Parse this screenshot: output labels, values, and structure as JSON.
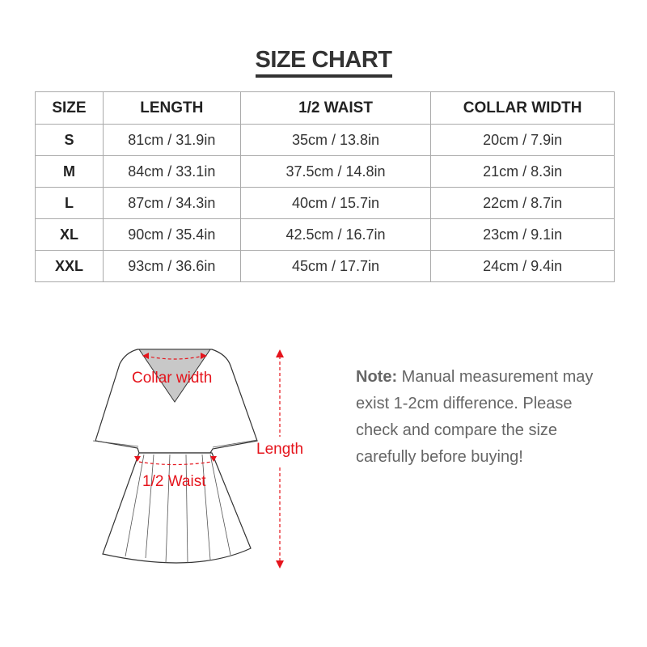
{
  "title": "SIZE CHART",
  "table": {
    "headers": [
      "SIZE",
      "LENGTH",
      "1/2 WAIST",
      "COLLAR WIDTH"
    ],
    "rows": [
      [
        "S",
        "81cm / 31.9in",
        "35cm / 13.8in",
        "20cm / 7.9in"
      ],
      [
        "M",
        "84cm / 33.1in",
        "37.5cm / 14.8in",
        "21cm / 8.3in"
      ],
      [
        "L",
        "87cm / 34.3in",
        "40cm / 15.7in",
        "22cm / 8.7in"
      ],
      [
        "XL",
        "90cm / 35.4in",
        "42.5cm / 16.7in",
        "23cm / 9.1in"
      ],
      [
        "XXL",
        "93cm / 36.6in",
        "45cm / 17.7in",
        "24cm / 9.4in"
      ]
    ]
  },
  "diagram": {
    "collar_label": "Collar width",
    "waist_label": "1/2 Waist",
    "length_label": "Length",
    "accent": "#e5141c"
  },
  "note": {
    "label": "Note:",
    "text": " Manual measurement may exist 1-2cm difference. Please check and compare the size carefully before buying!"
  }
}
